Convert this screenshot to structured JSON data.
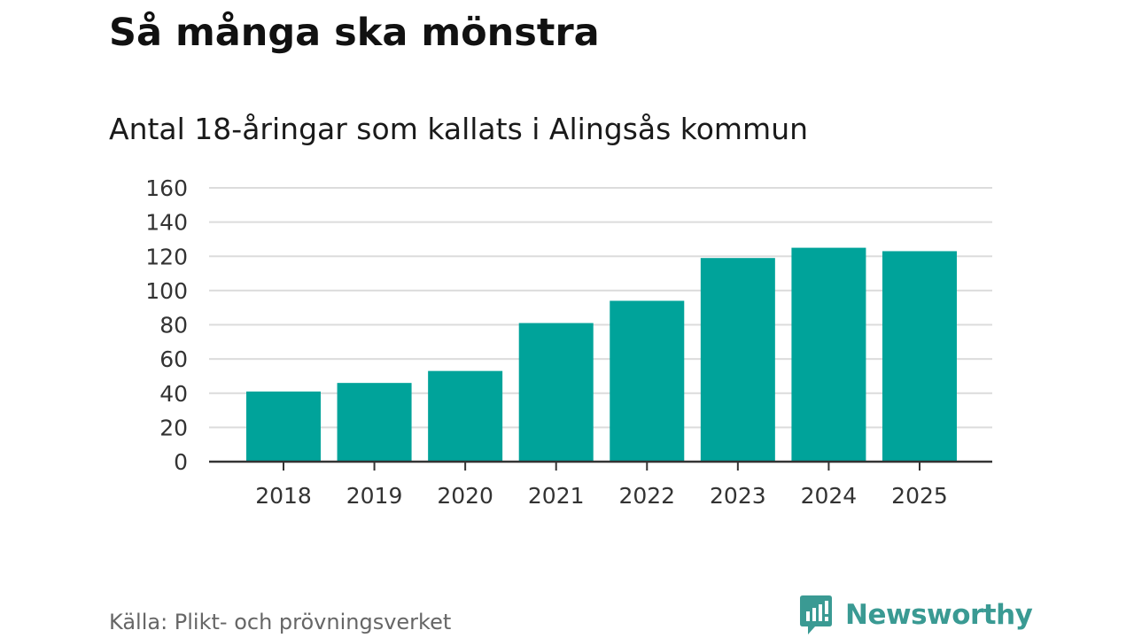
{
  "chart_data": {
    "type": "bar",
    "title": "Så många ska mönstra",
    "subtitle": "Antal 18-åringar som kallats i Alingsås kommun",
    "categories": [
      "2018",
      "2019",
      "2020",
      "2021",
      "2022",
      "2023",
      "2024",
      "2025"
    ],
    "values": [
      41,
      46,
      53,
      81,
      94,
      119,
      125,
      123
    ],
    "xlabel": "",
    "ylabel": "",
    "ylim": [
      0,
      160
    ],
    "yticks": [
      0,
      20,
      40,
      60,
      80,
      100,
      120,
      140,
      160
    ],
    "grid": true,
    "legend": "none",
    "bar_color": "#00a39a",
    "source": "Källa: Plikt- och prövningsverket"
  },
  "branding": {
    "logo_text": "Newsworthy",
    "logo_color": "#3a9a93"
  }
}
